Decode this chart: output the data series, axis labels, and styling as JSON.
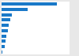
{
  "values": [
    27500000,
    13000000,
    5200000,
    4200000,
    3500000,
    3000000,
    2400000,
    1900000,
    1400000,
    400000
  ],
  "bar_color": "#1a79c8",
  "background_color": "#e8e8e8",
  "plot_bg_color": "#ffffff",
  "xlim": [
    0,
    34000000
  ],
  "bar_height": 0.6,
  "n_bars": 10
}
